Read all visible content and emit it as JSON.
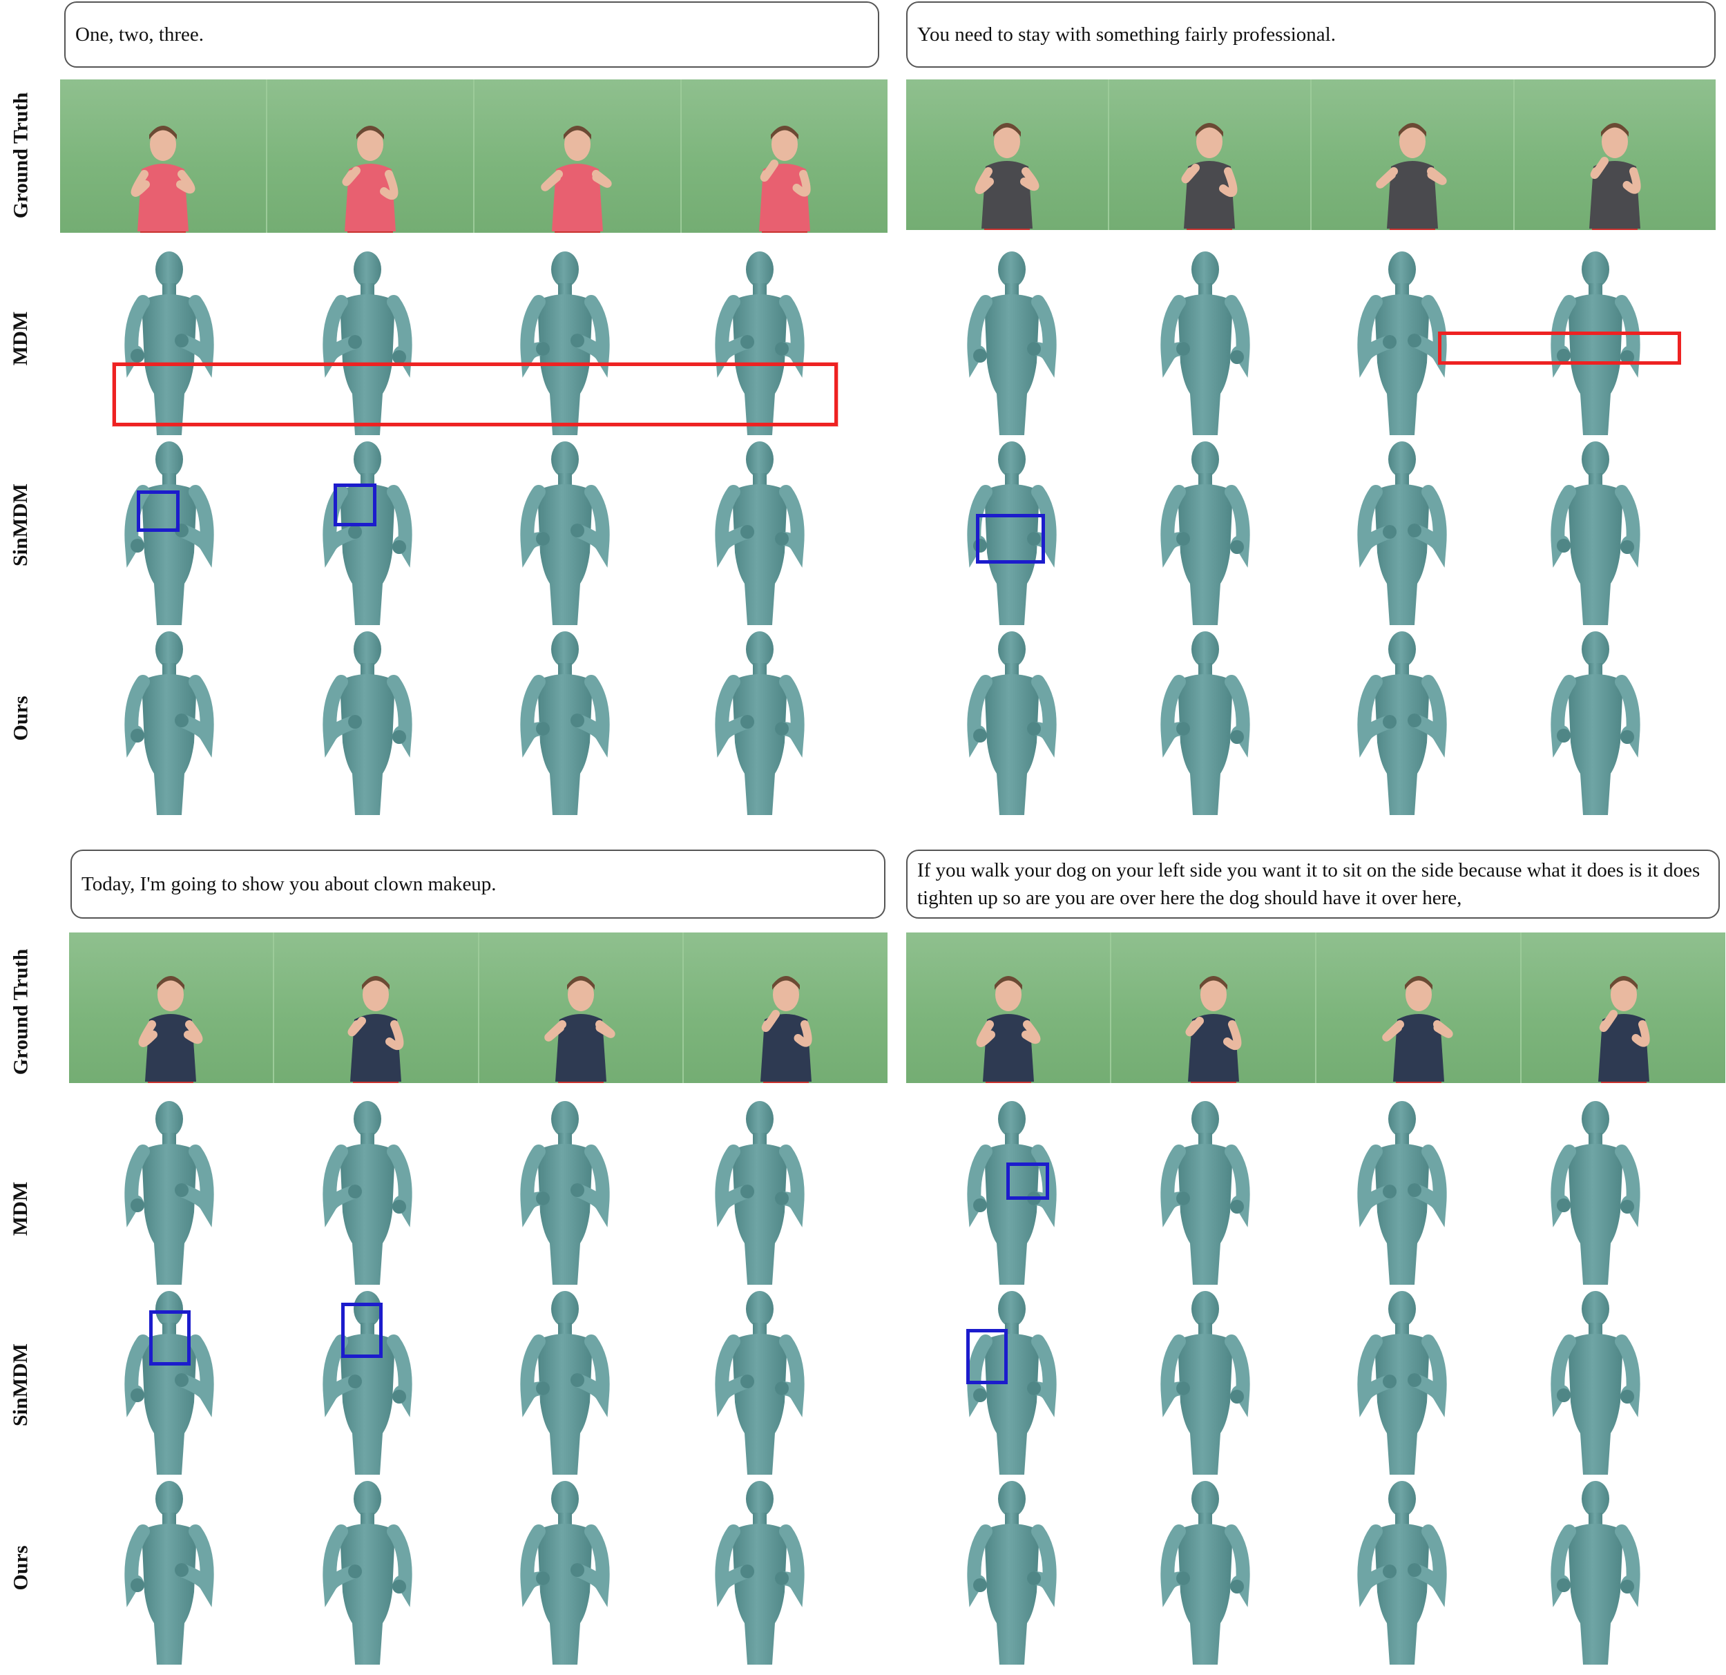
{
  "row_labels": {
    "ground_truth": "Ground Truth",
    "mdm": "MDM",
    "sinmdm": "SinMDM",
    "ours": "Ours"
  },
  "panels": [
    {
      "id": "top-left",
      "sentence": "One, two, three.",
      "signer": "woman-pink-shirt"
    },
    {
      "id": "top-right",
      "sentence": "You need to stay with something fairly professional.",
      "signer": "man-grey-shirt"
    },
    {
      "id": "bottom-left",
      "sentence": "Today, I'm going to show you about clown makeup.",
      "signer": "woman-navy-shirt"
    },
    {
      "id": "bottom-right",
      "sentence": "If you walk your dog on your left side you want it to sit on the side because what it does is it does tighten up so are you are over here the dog should have it over here,",
      "signer": "woman-navy-shirt"
    }
  ],
  "colors": {
    "avatar": "#6fa5a5",
    "avatar_shade": "#4f8686",
    "green_screen": "#7db57c",
    "error_box": "#ee2222",
    "hand_box": "#1c1ccc",
    "caption_border": "#555555"
  }
}
